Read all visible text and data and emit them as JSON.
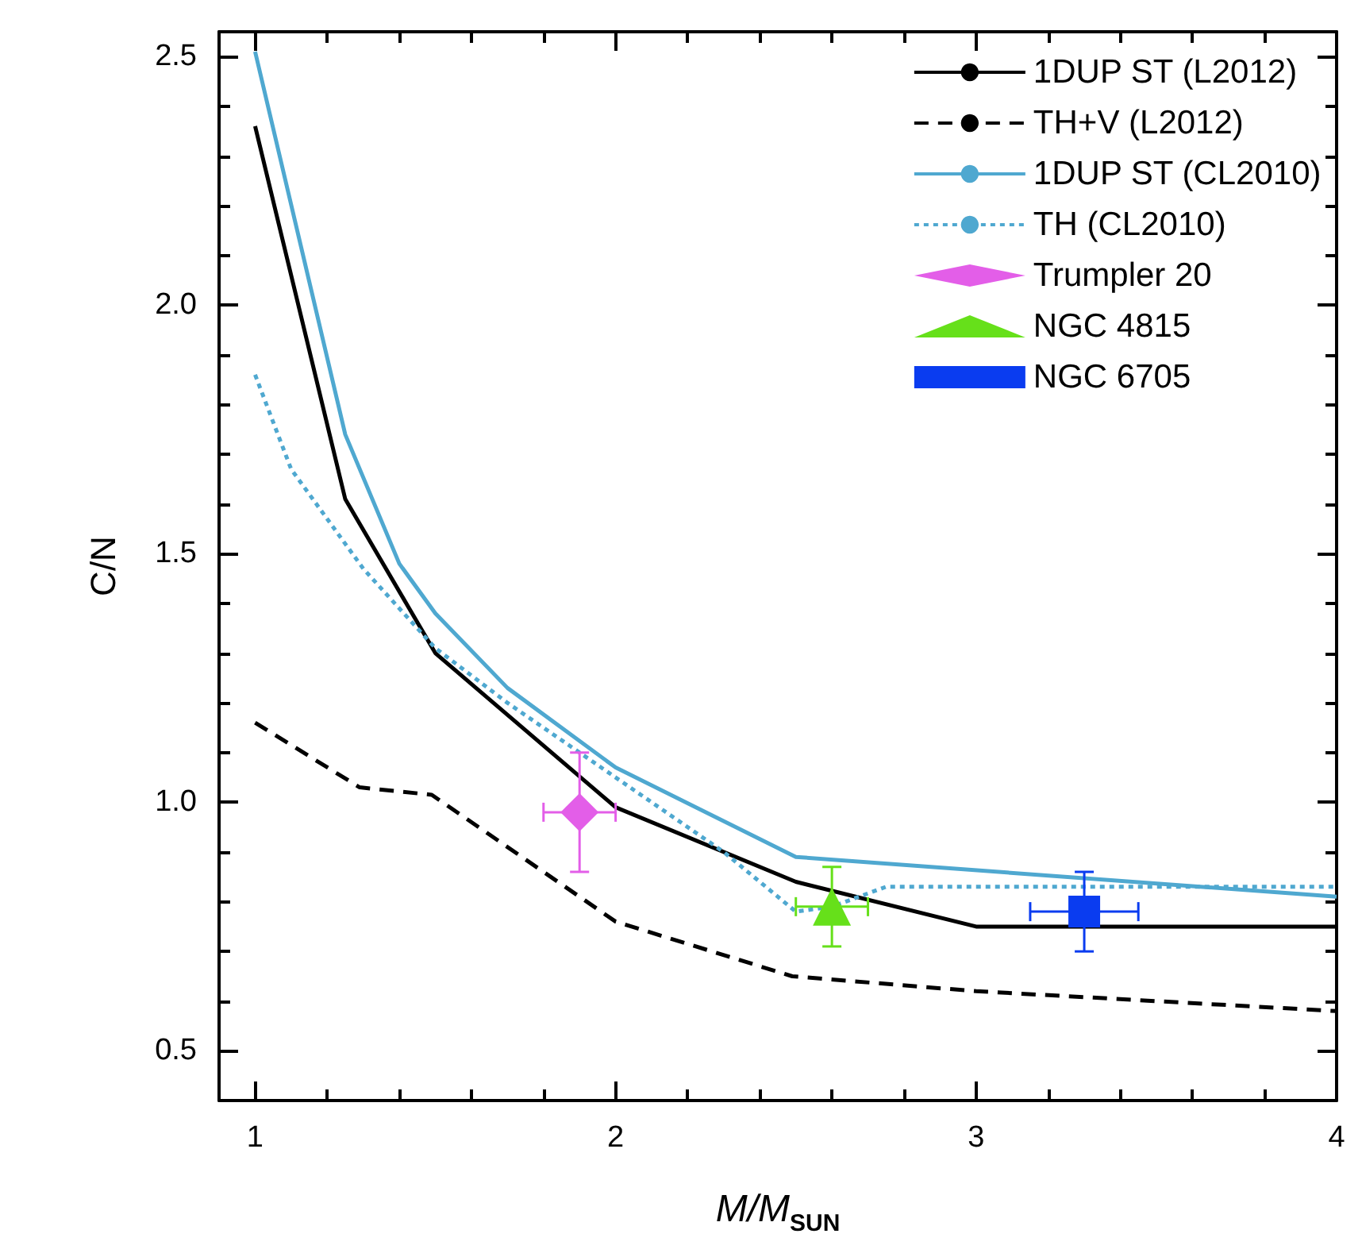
{
  "chart_data": {
    "type": "line",
    "xlabel": "M/M$_{SUN}$",
    "ylabel": "C/N",
    "xlim": [
      0.9,
      4
    ],
    "ylim": [
      0.4,
      2.55
    ],
    "xticks": [
      1,
      {
        "value": 1.2,
        "label": null
      },
      {
        "value": 1.4,
        "label": null
      },
      {
        "value": 1.6,
        "label": null
      },
      {
        "value": 1.8,
        "label": null
      },
      2,
      {
        "value": 2.2,
        "label": null
      },
      {
        "value": 2.4,
        "label": null
      },
      {
        "value": 2.6,
        "label": null
      },
      {
        "value": 2.8,
        "label": null
      },
      3,
      {
        "value": 3.2,
        "label": null
      },
      {
        "value": 3.4,
        "label": null
      },
      {
        "value": 3.6,
        "label": null
      },
      {
        "value": 3.8,
        "label": null
      },
      4
    ],
    "yticks": [
      {
        "value": 0.5,
        "label": "0.5"
      },
      {
        "value": 0.6,
        "label": null
      },
      {
        "value": 0.7,
        "label": null
      },
      {
        "value": 0.8,
        "label": null
      },
      {
        "value": 0.9,
        "label": null
      },
      {
        "value": 1.0,
        "label": "1.0"
      },
      {
        "value": 1.1,
        "label": null
      },
      {
        "value": 1.2,
        "label": null
      },
      {
        "value": 1.3,
        "label": null
      },
      {
        "value": 1.4,
        "label": null
      },
      {
        "value": 1.5,
        "label": "1.5"
      },
      {
        "value": 1.6,
        "label": null
      },
      {
        "value": 1.7,
        "label": null
      },
      {
        "value": 1.8,
        "label": null
      },
      {
        "value": 1.9,
        "label": null
      },
      {
        "value": 2.0,
        "label": "2.0"
      },
      {
        "value": 2.1,
        "label": null
      },
      {
        "value": 2.2,
        "label": null
      },
      {
        "value": 2.3,
        "label": null
      },
      {
        "value": 2.4,
        "label": null
      },
      {
        "value": 2.5,
        "label": "2.5"
      }
    ],
    "grid": false,
    "legend": "top right",
    "marker": "none",
    "series": [
      {
        "name": "1DUP ST (L2012)",
        "color": "#000000",
        "line_style": "solid",
        "x": [
          1,
          1.25,
          1.5,
          2,
          2.5,
          3,
          4
        ],
        "values": [
          2.36,
          1.61,
          1.3,
          0.99,
          0.84,
          0.75,
          0.75
        ]
      },
      {
        "name": "TH+V (L2012)",
        "color": "#000000",
        "line_style": "dashed",
        "x": [
          1,
          1.29,
          1.49,
          2,
          2.49,
          3,
          4
        ],
        "values": [
          1.16,
          1.03,
          1.015,
          0.76,
          0.65,
          0.62,
          0.58
        ]
      },
      {
        "name": "1DUP ST (CL2010)",
        "color": "#4fa8d0",
        "line_style": "solid",
        "x": [
          1,
          1.25,
          1.4,
          1.5,
          1.7,
          2,
          2.5,
          4
        ],
        "values": [
          2.51,
          1.74,
          1.48,
          1.38,
          1.23,
          1.07,
          0.89,
          0.81
        ]
      },
      {
        "name": "TH (CL2010)",
        "color": "#4fa8d0",
        "line_style": "dotted",
        "x": [
          1,
          1.1,
          1.3,
          1.5,
          1.7,
          2,
          2.3,
          2.5,
          2.6,
          2.75,
          3,
          4
        ],
        "values": [
          1.86,
          1.67,
          1.47,
          1.31,
          1.2,
          1.05,
          0.9,
          0.78,
          0.79,
          0.83,
          0.83,
          0.83
        ]
      },
      {
        "name": "Trumpler 20",
        "type": "scatter",
        "marker": "diamond",
        "color": "#e35ee8",
        "x": [
          1.9
        ],
        "values": [
          0.98
        ],
        "errors": [
          0.12
        ],
        "xerrors": [
          0.1
        ]
      },
      {
        "name": "NGC 4815",
        "type": "scatter",
        "marker": "triangle",
        "color": "#66e01a",
        "x": [
          2.6
        ],
        "values": [
          0.79
        ],
        "errors": [
          0.08
        ],
        "xerrors": [
          0.1
        ]
      },
      {
        "name": "NGC 6705",
        "type": "scatter",
        "marker": "square",
        "color": "#0a3cf0",
        "x": [
          3.3
        ],
        "values": [
          0.78
        ],
        "errors": [
          0.08
        ],
        "xerrors": [
          0.15
        ]
      }
    ]
  }
}
